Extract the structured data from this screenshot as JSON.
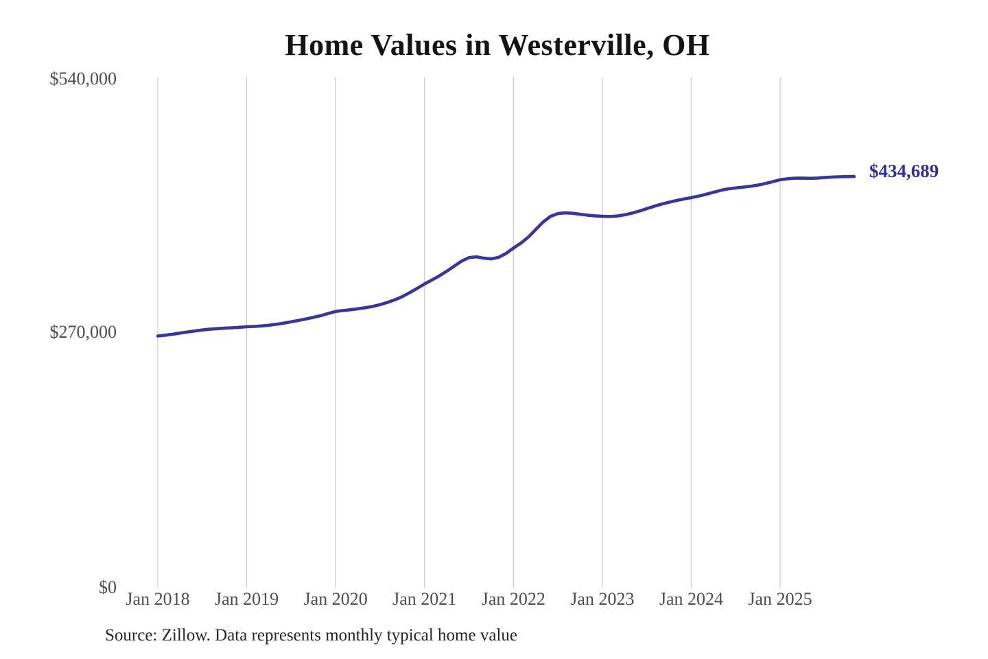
{
  "title": "Home Values in Westerville, OH",
  "annotation": {
    "end_value_label": "$434,689"
  },
  "source_note": "Source: Zillow. Data represents monthly typical home value",
  "axes": {
    "y_ticks": [
      "$540,000",
      "$270,000",
      "$0"
    ],
    "x_ticks": [
      "Jan 2018",
      "Jan 2019",
      "Jan 2020",
      "Jan 2021",
      "Jan 2022",
      "Jan 2023",
      "Jan 2024",
      "Jan 2025"
    ]
  },
  "colors": {
    "background": "#ffffff",
    "line": "#3a359c",
    "annotation": "#312d9b",
    "gridline": "#c9c9c9",
    "tick_text": "#4d4d4d",
    "title_text": "#141414",
    "source_text": "#262626"
  },
  "chart_data": {
    "type": "line",
    "title": "Home Values in Westerville, OH",
    "xlabel": "",
    "ylabel": "",
    "y_unit": "USD",
    "ylim": [
      0,
      540000
    ],
    "x_tick_labels": [
      "Jan 2018",
      "Jan 2019",
      "Jan 2020",
      "Jan 2021",
      "Jan 2022",
      "Jan 2023",
      "Jan 2024",
      "Jan 2025"
    ],
    "y_tick_labels": [
      "$0",
      "$270,000",
      "$540,000"
    ],
    "grid": "vertical",
    "legend": "none",
    "end_annotation": {
      "text": "$434,689",
      "value": 434689,
      "month": "2025-11"
    },
    "source": "Source: Zillow. Data represents monthly typical home value",
    "series": [
      {
        "name": "Typical home value (monthly)",
        "months": [
          "2018-01",
          "2018-02",
          "2018-03",
          "2018-04",
          "2018-05",
          "2018-06",
          "2018-07",
          "2018-08",
          "2018-09",
          "2018-10",
          "2018-11",
          "2018-12",
          "2019-01",
          "2019-02",
          "2019-03",
          "2019-04",
          "2019-05",
          "2019-06",
          "2019-07",
          "2019-08",
          "2019-09",
          "2019-10",
          "2019-11",
          "2019-12",
          "2020-01",
          "2020-02",
          "2020-03",
          "2020-04",
          "2020-05",
          "2020-06",
          "2020-07",
          "2020-08",
          "2020-09",
          "2020-10",
          "2020-11",
          "2020-12",
          "2021-01",
          "2021-02",
          "2021-03",
          "2021-04",
          "2021-05",
          "2021-06",
          "2021-07",
          "2021-08",
          "2021-09",
          "2021-10",
          "2021-11",
          "2021-12",
          "2022-01",
          "2022-02",
          "2022-03",
          "2022-04",
          "2022-05",
          "2022-06",
          "2022-07",
          "2022-08",
          "2022-09",
          "2022-10",
          "2022-11",
          "2022-12",
          "2023-01",
          "2023-02",
          "2023-03",
          "2023-04",
          "2023-05",
          "2023-06",
          "2023-07",
          "2023-08",
          "2023-09",
          "2023-10",
          "2023-11",
          "2023-12",
          "2024-01",
          "2024-02",
          "2024-03",
          "2024-04",
          "2024-05",
          "2024-06",
          "2024-07",
          "2024-08",
          "2024-09",
          "2024-10",
          "2024-11",
          "2024-12",
          "2025-01",
          "2025-02",
          "2025-03",
          "2025-04",
          "2025-05",
          "2025-06",
          "2025-07",
          "2025-08",
          "2025-09",
          "2025-10",
          "2025-11"
        ],
        "values": [
          266000,
          266900,
          267900,
          269100,
          270300,
          271400,
          272400,
          273200,
          273800,
          274300,
          274700,
          275200,
          275800,
          276200,
          276700,
          277400,
          278400,
          279600,
          281000,
          282500,
          284100,
          285800,
          287600,
          289800,
          292000,
          292900,
          293800,
          294800,
          295900,
          297300,
          299200,
          301500,
          304300,
          307700,
          311800,
          316400,
          321000,
          325200,
          329600,
          334500,
          339800,
          345200,
          348900,
          349800,
          348300,
          347600,
          349200,
          353300,
          359000,
          364200,
          370500,
          378500,
          386500,
          392500,
          395500,
          396200,
          395800,
          394800,
          393800,
          393100,
          392600,
          392400,
          392900,
          394100,
          395900,
          398200,
          400700,
          403200,
          405500,
          407500,
          409300,
          410900,
          412300,
          413900,
          415900,
          418000,
          420000,
          421600,
          422600,
          423400,
          424300,
          425600,
          427200,
          429200,
          431300,
          432300,
          432900,
          433000,
          432700,
          433000,
          433600,
          434100,
          434400,
          434600,
          434689
        ]
      }
    ]
  }
}
